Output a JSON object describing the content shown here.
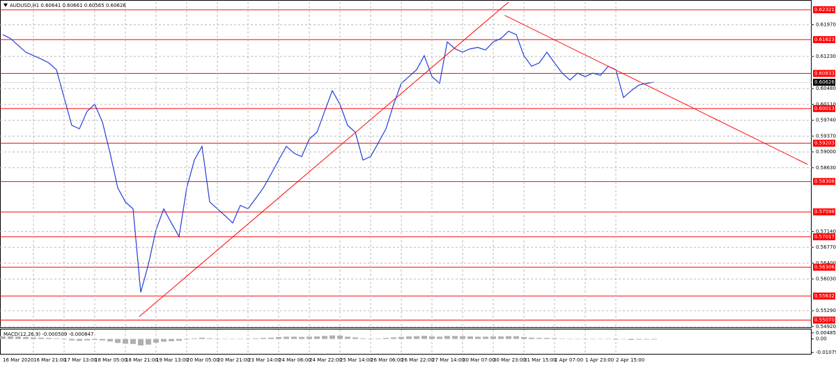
{
  "chart_data": {
    "type": "line",
    "title": "AUDUSD,H1 0.60641 0.60661 0.60565 0.60626",
    "categories": [
      "16 Mar 2020",
      null,
      null,
      null,
      "16 Mar 21:00",
      null,
      null,
      null,
      "17 Mar 13:00",
      null,
      null,
      null,
      "18 Mar 05:00",
      null,
      null,
      null,
      "18 Mar 21:00",
      null,
      null,
      null,
      "19 Mar 13:00",
      null,
      null,
      null,
      "20 Mar 05:00",
      null,
      null,
      null,
      "20 Mar 21:00",
      null,
      null,
      null,
      "23 Mar 14:00",
      null,
      null,
      null,
      "24 Mar 06:00",
      null,
      null,
      null,
      "24 Mar 22:00",
      null,
      null,
      null,
      "25 Mar 14:00",
      null,
      null,
      null,
      "26 Mar 06:00",
      null,
      null,
      null,
      "26 Mar 22:00",
      null,
      null,
      null,
      "27 Mar 14:00",
      null,
      null,
      null,
      "30 Mar 07:00",
      null,
      null,
      null,
      "30 Mar 23:00",
      null,
      null,
      null,
      "31 Mar 15:00",
      null,
      null,
      null,
      "1 Apr 07:00",
      null,
      null,
      null,
      "1 Apr 23:00",
      null,
      null,
      null,
      "2 Apr 15:00",
      null,
      null,
      null,
      null,
      null
    ],
    "series": [
      {
        "color": "#1f3dd6",
        "values": [
          0.6174,
          0.6165,
          0.6149,
          0.6133,
          0.6125,
          0.6117,
          0.6108,
          0.6092,
          0.6027,
          0.5962,
          0.5954,
          0.5995,
          0.6011,
          0.597,
          0.5897,
          0.5816,
          0.5783,
          0.5767,
          0.5572,
          0.5637,
          0.5718,
          0.5767,
          0.5734,
          0.5702,
          0.5816,
          0.5881,
          0.5913,
          0.5783,
          0.5767,
          0.5751,
          0.5734,
          0.5775,
          0.5767,
          0.5791,
          0.5816,
          0.5848,
          0.5881,
          0.5913,
          0.5897,
          0.5889,
          0.593,
          0.5946,
          0.5995,
          0.6043,
          0.6011,
          0.5962,
          0.5946,
          0.5881,
          0.5889,
          0.5921,
          0.5954,
          0.6011,
          0.606,
          0.6076,
          0.6092,
          0.6125,
          0.6076,
          0.606,
          0.6157,
          0.6141,
          0.6133,
          0.6141,
          0.6144,
          0.6138,
          0.6157,
          0.6165,
          0.6182,
          0.6174,
          0.6125,
          0.61,
          0.6108,
          0.6133,
          0.6108,
          0.6084,
          0.6068,
          0.6084,
          0.6076,
          0.6084,
          0.6079,
          0.61,
          0.6092,
          0.6027,
          0.6043,
          0.6056,
          0.606,
          0.6063
        ]
      }
    ],
    "ylim": [
      0.549,
      0.625
    ],
    "yticks": [
      {
        "value": 0.6197,
        "label": "0.61970"
      },
      {
        "value": 0.6123,
        "label": "0.61230"
      },
      {
        "value": 0.6048,
        "label": "0.60480"
      },
      {
        "value": 0.6011,
        "label": "0.60110"
      },
      {
        "value": 0.5974,
        "label": "0.59740"
      },
      {
        "value": 0.5937,
        "label": "0.59370"
      },
      {
        "value": 0.59,
        "label": "0.59000"
      },
      {
        "value": 0.5863,
        "label": "0.58630"
      },
      {
        "value": 0.5714,
        "label": "0.57140"
      },
      {
        "value": 0.5677,
        "label": "0.56770"
      },
      {
        "value": 0.564,
        "label": "0.56400"
      },
      {
        "value": 0.5603,
        "label": "0.56030"
      },
      {
        "value": 0.5529,
        "label": "0.55290"
      },
      {
        "value": 0.5492,
        "label": "0.54920"
      }
    ],
    "grid": true,
    "levels": {
      "color": "#ff0000",
      "values": [
        0.62321,
        0.61623,
        0.60833,
        0.60013,
        0.59203,
        0.58308,
        0.57598,
        0.57017,
        0.56306,
        0.55632,
        {
          "value": 0.5507,
          "label": "0.55070"
        }
      ]
    },
    "current_price": 0.60626,
    "trendlines": [
      {
        "color": "#ff0000",
        "x": [
          17.8,
          66
        ],
        "values": [
          0.5515,
          0.625
        ]
      },
      {
        "color": "#ff0000",
        "x": [
          65.5,
          105
        ],
        "values": [
          0.6219,
          0.5871
        ]
      }
    ],
    "macd": {
      "label": "MACD(12,26,9) -0.000509 -0.000847",
      "color": "#b0b0b0",
      "ylim": [
        -0.0119,
        0.007
      ],
      "yticks": [
        0.004851,
        {
          "value": 0,
          "label": "0.00"
        },
        -0.01079
      ],
      "values": [
        0.002,
        0.002,
        0.0018,
        0.0015,
        0.0012,
        0.001,
        0.0008,
        0.0005,
        -0.0005,
        -0.0012,
        -0.0015,
        -0.0012,
        -0.0008,
        -0.0012,
        -0.002,
        -0.0032,
        -0.0038,
        -0.004,
        -0.0052,
        -0.0045,
        -0.003,
        -0.0022,
        -0.0018,
        -0.0015,
        -0.0005,
        0.0005,
        0.001,
        0.0005,
        0.0002,
        0,
        -0.0002,
        0,
        0.0003,
        0.0005,
        0.0008,
        0.001,
        0.0015,
        0.0018,
        0.0018,
        0.0016,
        0.0018,
        0.002,
        0.0024,
        0.0028,
        0.0026,
        0.0018,
        0.0012,
        0.0005,
        0.0002,
        0.0004,
        0.0008,
        0.0012,
        0.0016,
        0.002,
        0.0022,
        0.0025,
        0.002,
        0.0018,
        0.0024,
        0.0024,
        0.0022,
        0.002,
        0.0018,
        0.0018,
        0.002,
        0.002,
        0.0022,
        0.0022,
        0.0015,
        0.001,
        0.0008,
        0.0008,
        0.0006,
        0.0003,
        0,
        -0.0002,
        -0.0002,
        -0.0003,
        -0.0002,
        -0.0002,
        -0.0005,
        -0.0003,
        -0.0008,
        -0.0006,
        -0.0005,
        -0.0005
      ]
    }
  }
}
